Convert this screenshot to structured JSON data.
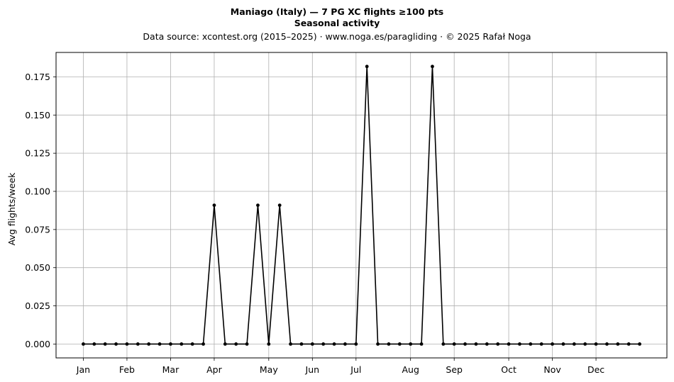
{
  "chart_data": {
    "type": "line",
    "title": "Maniago (Italy)  —  7 PG XC flights ≥100 pts",
    "subtitle": "Seasonal activity",
    "source": "Data source: xcontest.org (2015–2025)  ·  www.noga.es/paragliding  ·  © 2025 Rafał Noga",
    "xlabel": "",
    "ylabel": "Avg flights/week",
    "grid": true,
    "legend": "none",
    "line_color": "#000000",
    "xlim": [
      -2.5,
      53.5
    ],
    "ylim": [
      -0.0091,
      0.191
    ],
    "x_ticks": [
      {
        "label": "Jan",
        "x": 0
      },
      {
        "label": "Feb",
        "x": 4
      },
      {
        "label": "Mar",
        "x": 8
      },
      {
        "label": "Apr",
        "x": 12
      },
      {
        "label": "May",
        "x": 17
      },
      {
        "label": "Jun",
        "x": 21
      },
      {
        "label": "Jul",
        "x": 25
      },
      {
        "label": "Aug",
        "x": 30
      },
      {
        "label": "Sep",
        "x": 34
      },
      {
        "label": "Oct",
        "x": 39
      },
      {
        "label": "Nov",
        "x": 43
      },
      {
        "label": "Dec",
        "x": 47
      }
    ],
    "y_ticks": [
      {
        "label": "0.000",
        "y": 0
      },
      {
        "label": "0.025",
        "y": 0.025
      },
      {
        "label": "0.050",
        "y": 0.05
      },
      {
        "label": "0.075",
        "y": 0.075
      },
      {
        "label": "0.100",
        "y": 0.1
      },
      {
        "label": "0.125",
        "y": 0.125
      },
      {
        "label": "0.150",
        "y": 0.15
      },
      {
        "label": "0.175",
        "y": 0.175
      }
    ],
    "x": [
      0,
      1,
      2,
      3,
      4,
      5,
      6,
      7,
      8,
      9,
      10,
      11,
      12,
      13,
      14,
      15,
      16,
      17,
      18,
      19,
      20,
      21,
      22,
      23,
      24,
      25,
      26,
      27,
      28,
      29,
      30,
      31,
      32,
      33,
      34,
      35,
      36,
      37,
      38,
      39,
      40,
      41,
      42,
      43,
      44,
      45,
      46,
      47,
      48,
      49,
      50,
      51
    ],
    "values": [
      0,
      0,
      0,
      0,
      0,
      0,
      0,
      0,
      0,
      0,
      0,
      0,
      0.0909,
      0,
      0,
      0,
      0.0909,
      0,
      0.0909,
      0,
      0,
      0,
      0,
      0,
      0,
      0,
      0.1818,
      0,
      0,
      0,
      0,
      0,
      0.1818,
      0,
      0,
      0,
      0,
      0,
      0,
      0,
      0,
      0,
      0,
      0,
      0,
      0,
      0,
      0,
      0,
      0,
      0,
      0
    ]
  }
}
